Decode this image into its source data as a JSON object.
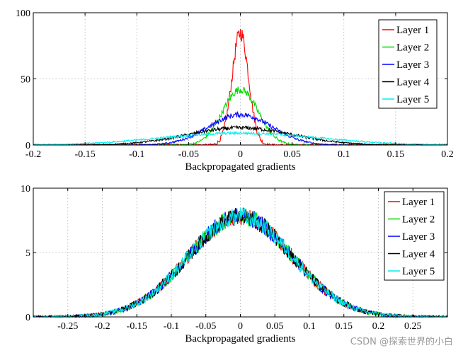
{
  "chart_data": [
    {
      "type": "line",
      "id": "top",
      "xlabel": "Backpropagated gradients",
      "ylabel": "",
      "xlim": [
        -0.2,
        0.2
      ],
      "ylim": [
        0,
        100
      ],
      "xticks": [
        -0.2,
        -0.15,
        -0.1,
        -0.05,
        0,
        0.05,
        0.1,
        0.15,
        0.2
      ],
      "xtick_labels": [
        "-0.2",
        "-0.15",
        "-0.1",
        "-0.05",
        "0",
        "0.05",
        "0.1",
        "0.15",
        "0.2"
      ],
      "yticks": [
        0,
        50,
        100
      ],
      "ytick_labels": [
        "0",
        "50",
        "100"
      ],
      "grid": true,
      "legend_position": "top-right",
      "series": [
        {
          "name": "Layer 1",
          "color": "#ff0000",
          "peak": 85,
          "width": 0.008,
          "noise": 6
        },
        {
          "name": "Layer 2",
          "color": "#00dd00",
          "peak": 42,
          "width": 0.017,
          "noise": 3
        },
        {
          "name": "Layer 3",
          "color": "#0000ff",
          "peak": 23,
          "width": 0.03,
          "noise": 2
        },
        {
          "name": "Layer 4",
          "color": "#000000",
          "peak": 13,
          "width": 0.05,
          "noise": 1.5
        },
        {
          "name": "Layer 5",
          "color": "#00eeee",
          "peak": 9,
          "width": 0.075,
          "noise": 1
        }
      ]
    },
    {
      "type": "line",
      "id": "bottom",
      "xlabel": "Backpropagated gradients",
      "ylabel": "",
      "xlim": [
        -0.3,
        0.3
      ],
      "ylim": [
        0,
        10
      ],
      "xticks": [
        -0.25,
        -0.2,
        -0.15,
        -0.1,
        -0.05,
        0,
        0.05,
        0.1,
        0.15,
        0.2,
        0.25
      ],
      "xtick_labels": [
        "-0.25",
        "-0.2",
        "-0.15",
        "-0.1",
        "-0.05",
        "0",
        "0.05",
        "0.1",
        "0.15",
        "0.2",
        "0.25"
      ],
      "yticks": [
        0,
        5,
        10
      ],
      "ytick_labels": [
        "0",
        "5",
        "10"
      ],
      "grid": true,
      "legend_position": "top-right",
      "series": [
        {
          "name": "Layer 1",
          "color": "#ff0000",
          "peak": 7.8,
          "width": 0.075,
          "noise": 0.7
        },
        {
          "name": "Layer 2",
          "color": "#00dd00",
          "peak": 7.8,
          "width": 0.075,
          "noise": 0.7
        },
        {
          "name": "Layer 3",
          "color": "#0000ff",
          "peak": 7.8,
          "width": 0.075,
          "noise": 0.7
        },
        {
          "name": "Layer 4",
          "color": "#000000",
          "peak": 7.8,
          "width": 0.075,
          "noise": 0.7
        },
        {
          "name": "Layer 5",
          "color": "#00eeee",
          "peak": 7.8,
          "width": 0.075,
          "noise": 0.7
        }
      ]
    }
  ],
  "watermark": "CSDN @探索世界的小白"
}
